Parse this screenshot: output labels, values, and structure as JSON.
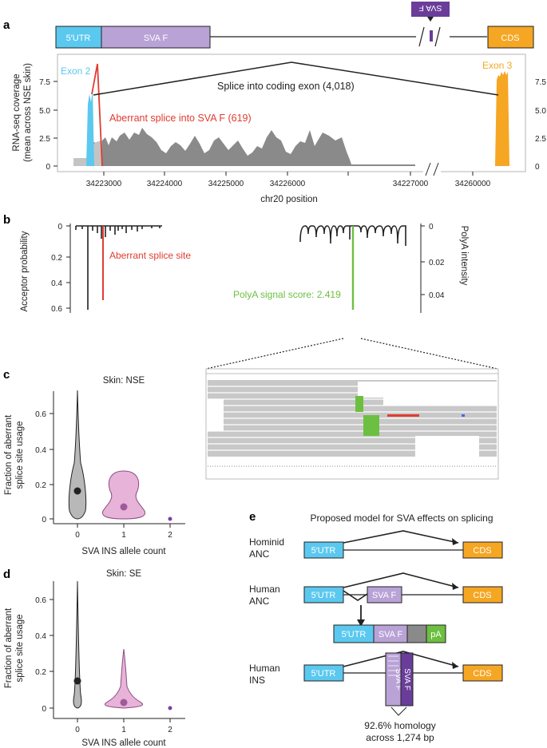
{
  "panel_labels": {
    "a": "a",
    "b": "b",
    "c": "c",
    "d": "d",
    "e": "e"
  },
  "panel_a": {
    "gene_model": {
      "utr": "5′UTR",
      "sva": "SVA F",
      "cds": "CDS",
      "flipped_sva": "SVA F"
    },
    "ylabel_line1": "RNA-seq coverage",
    "ylabel_line2": "(mean across NSE skin)",
    "xlabel": "chr20 position",
    "y_ticks": [
      "0",
      "2.5",
      "5.0",
      "7.5"
    ],
    "x_ticks": [
      "34223000",
      "34224000",
      "34225000",
      "34226000",
      "34227000",
      "34260000"
    ],
    "exon2_label": "Exon 2",
    "exon3_label": "Exon 3",
    "splice_coding_label": "Splice into coding exon (4,018)",
    "aberrant_splice_label": "Aberrant splice into SVA F (619)",
    "colors": {
      "utr": "#5bc8ef",
      "sva": "#b9a2d6",
      "sva_dark": "#6a3d9a",
      "cds": "#f5a623",
      "coverage": "#8a8a8a",
      "aberrant": "#e03c31",
      "polya": "#6cbf40"
    }
  },
  "panel_b": {
    "ylabel_left": "Acceptor probability",
    "ylabel_right": "PolyA intensity",
    "left_ticks": [
      "0",
      "0.2",
      "0.4",
      "0.6"
    ],
    "right_ticks": [
      "0",
      "0.02",
      "0.04"
    ],
    "aberrant_site_label": "Aberrant splice site",
    "polya_label": "PolyA signal score: 2.419"
  },
  "panel_c": {
    "chart_data": {
      "type": "violin",
      "title": "Skin: NSE",
      "xlabel": "SVA INS allele count",
      "ylabel_line1": "Fraction of aberrant",
      "ylabel_line2": "splice site usage",
      "categories": [
        "0",
        "1",
        "2"
      ],
      "medians": [
        0.16,
        0.06,
        0.0
      ],
      "maxima": [
        0.73,
        0.27,
        0.0
      ],
      "y_ticks": [
        "0",
        "0.2",
        "0.4",
        "0.6"
      ],
      "ylim": [
        0,
        0.75
      ]
    }
  },
  "panel_d": {
    "chart_data": {
      "type": "violin",
      "title": "Skin: SE",
      "xlabel": "SVA INS allele count",
      "ylabel_line1": "Fraction of aberrant",
      "ylabel_line2": "splice site usage",
      "categories": [
        "0",
        "1",
        "2"
      ],
      "medians": [
        0.14,
        0.03,
        0.0
      ],
      "maxima": [
        0.62,
        0.28,
        0.0
      ],
      "y_ticks": [
        "0",
        "0.2",
        "0.4",
        "0.6"
      ],
      "ylim": [
        0,
        0.65
      ]
    }
  },
  "panel_e": {
    "title": "Proposed model for SVA effects on splicing",
    "rows": [
      {
        "label1": "Hominid",
        "label2": "ANC"
      },
      {
        "label1": "Human",
        "label2": "ANC"
      },
      {
        "label1": "Human",
        "label2": "INS"
      }
    ],
    "utr": "5′UTR",
    "sva": "SVA F",
    "cds": "CDS",
    "pa": "pA",
    "homology_line1": "92.6% homology",
    "homology_line2": "across 1,274 bp"
  }
}
